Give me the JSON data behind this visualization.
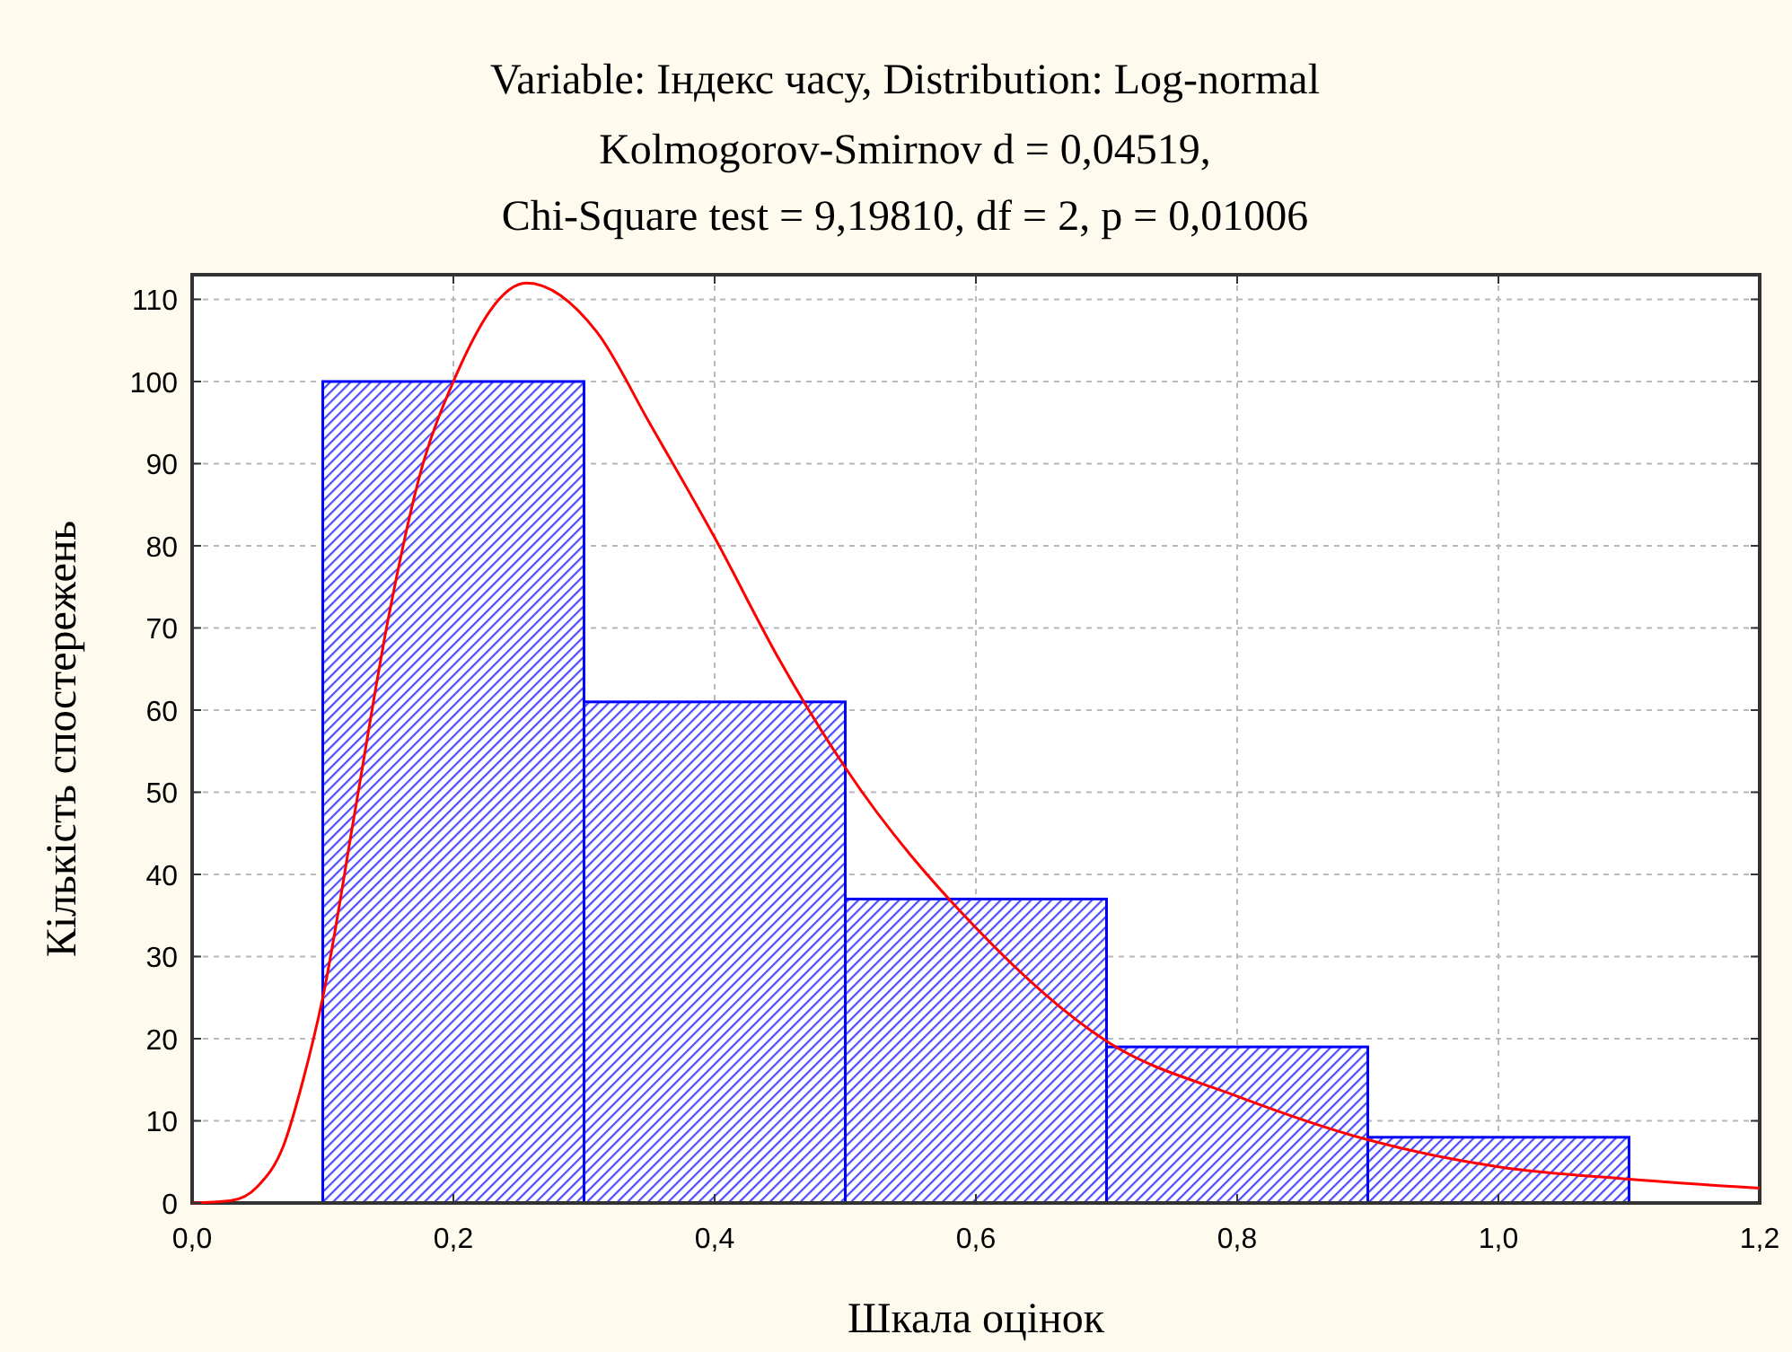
{
  "chart_data": {
    "type": "histogram",
    "title": "Variable: Індекс часу, Distribution: Log-normal",
    "subtitle": "Kolmogorov-Smirnov d = 0,04519,\nChi-Square test = 9,19810, df = 2, p = 0,01006",
    "xlabel": "Шкала оцінок",
    "ylabel": "Кількість спостережень",
    "bins": [
      0.1,
      0.3,
      0.5,
      0.7,
      0.9,
      1.1
    ],
    "values": [
      100,
      61,
      37,
      19,
      8
    ],
    "color": "#0000ff",
    "series": [
      {
        "type": "line",
        "color": "#ff0000",
        "x": [
          0,
          0.03,
          0.05,
          0.07,
          0.085,
          0.1,
          0.125,
          0.15,
          0.175,
          0.2,
          0.256,
          0.31,
          0.35,
          0.4,
          0.45,
          0.5,
          0.6,
          0.7,
          0.8,
          0.9,
          1.0,
          1.1,
          1.2
        ],
        "values": [
          0,
          0.3,
          2,
          7,
          15,
          25,
          48,
          71,
          89,
          100,
          112,
          106,
          95,
          81,
          66,
          53,
          33.5,
          19.7,
          13,
          7.7,
          4.4,
          2.9,
          1.8
        ]
      }
    ],
    "xlim": [
      0,
      1.2
    ],
    "xticks": [
      {
        "value": 0,
        "label": "0,0"
      },
      {
        "value": 0.2,
        "label": "0,2"
      },
      {
        "value": 0.4,
        "label": "0,4"
      },
      {
        "value": 0.6,
        "label": "0,6"
      },
      {
        "value": 0.8,
        "label": "0,8"
      },
      {
        "value": 1,
        "label": "1,0"
      },
      {
        "value": 1.2,
        "label": "1,2"
      }
    ],
    "ylim": [
      0,
      113
    ],
    "yticks": [
      0,
      10,
      20,
      30,
      40,
      50,
      60,
      70,
      80,
      90,
      100,
      110
    ],
    "grid": true,
    "marker": "none",
    "line_style": "solid"
  }
}
